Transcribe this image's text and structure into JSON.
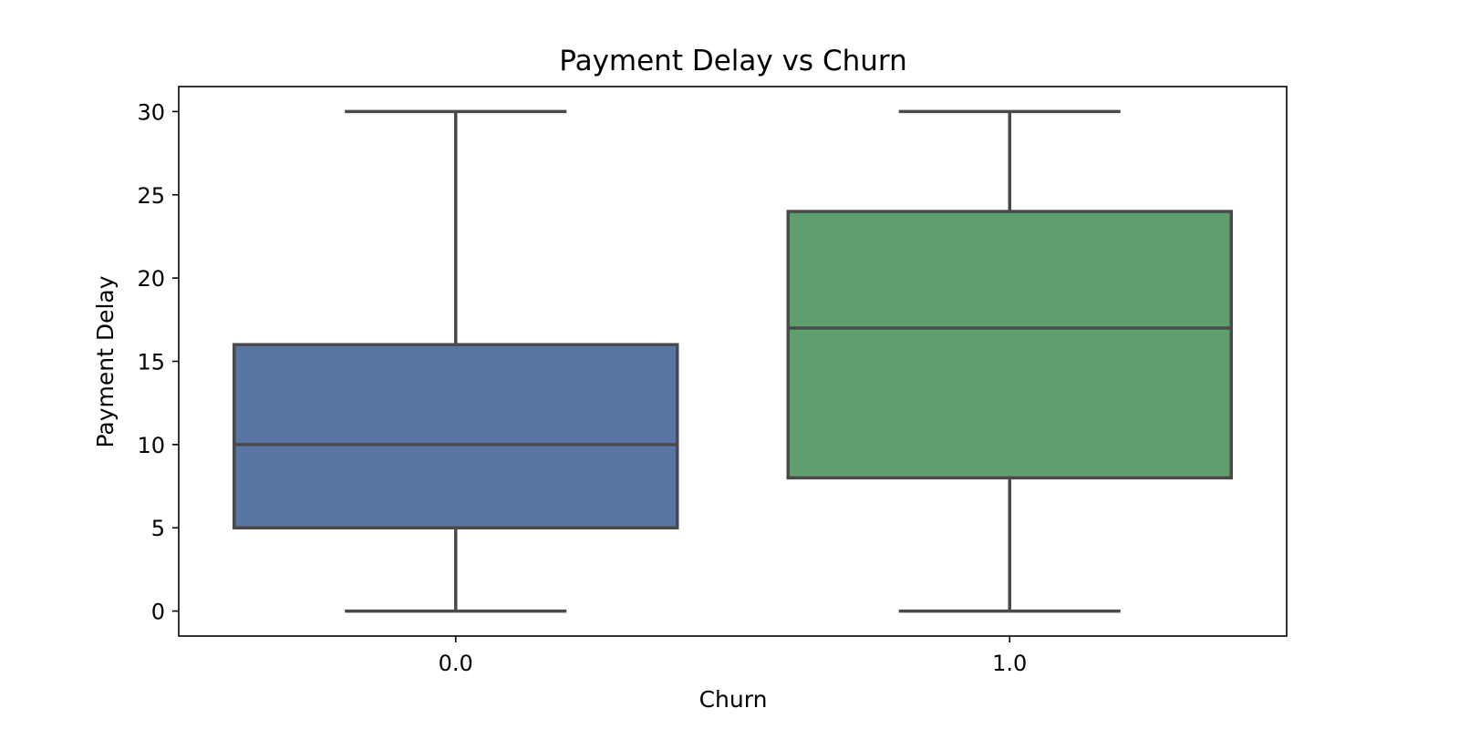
{
  "chart_data": {
    "type": "box",
    "title": "Payment Delay vs Churn",
    "xlabel": "Churn",
    "ylabel": "Payment Delay",
    "categories": [
      "0.0",
      "1.0"
    ],
    "ylim": [
      -1.5,
      31.5
    ],
    "yticks": [
      0,
      5,
      10,
      15,
      20,
      25,
      30
    ],
    "grid": false,
    "boxes": [
      {
        "category": "0.0",
        "min": 0,
        "q1": 5,
        "median": 10,
        "q3": 16,
        "max": 30,
        "color": "#5975a4"
      },
      {
        "category": "1.0",
        "min": 0,
        "q1": 8,
        "median": 17,
        "q3": 24,
        "max": 30,
        "color": "#5f9e6e"
      }
    ],
    "line_color": "#4a4a4a"
  }
}
